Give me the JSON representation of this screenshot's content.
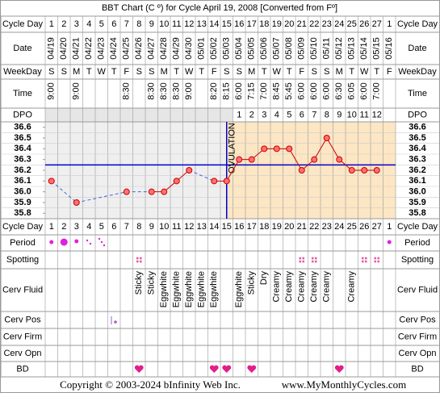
{
  "title": "BBT Chart (C º) for Cycle April 19, 2008  [Converted from Fº]",
  "row_labels": [
    "Cycle Day",
    "Date",
    "WeekDay",
    "Time",
    "DPO",
    "Cycle Day",
    "Period",
    "Spotting",
    "Cerv Fluid",
    "Cerv Pos",
    "Cerv Firm",
    "Cerv Opn",
    "BD"
  ],
  "cycle_days": [
    1,
    2,
    3,
    4,
    5,
    6,
    7,
    8,
    9,
    10,
    11,
    12,
    13,
    14,
    15,
    16,
    17,
    18,
    19,
    20,
    21,
    22,
    23,
    24,
    25,
    26,
    27,
    1
  ],
  "weekdays": [
    "S",
    "S",
    "M",
    "T",
    "W",
    "T",
    "F",
    "S",
    "S",
    "M",
    "T",
    "W",
    "T",
    "F",
    "S",
    "S",
    "M",
    "T",
    "W",
    "T",
    "F",
    "S",
    "S",
    "M",
    "T",
    "W",
    "T",
    "F"
  ],
  "times": [
    "9:00",
    null,
    "9:00",
    null,
    null,
    null,
    "8:30",
    null,
    "8:30",
    "8:30",
    "8:30",
    "9:00",
    null,
    "8:20",
    "8:15",
    "6:00",
    "7:15",
    "7:00",
    "8:45",
    "5:45",
    "6:00",
    "6:00",
    "6:00",
    "6:30",
    "6:05",
    "6:00",
    "7:00",
    null
  ],
  "dpo": [
    null,
    null,
    null,
    null,
    null,
    null,
    null,
    null,
    null,
    null,
    null,
    null,
    null,
    null,
    null,
    1,
    2,
    3,
    4,
    5,
    6,
    7,
    8,
    9,
    10,
    11,
    12,
    null
  ],
  "cerv_fluid": [
    null,
    null,
    null,
    null,
    null,
    null,
    null,
    "Sticky",
    "Sticky",
    "Eggwhite",
    "Eggwhite",
    "Eggwhite",
    "Eggwhite",
    "Eggwhite",
    null,
    "Eggwhite",
    "Sticky",
    "Dry",
    "Creamy",
    "Creamy",
    "Creamy",
    "Creamy",
    "Creamy",
    null,
    "Creamy",
    null,
    null,
    null
  ],
  "chart_data": {
    "type": "line",
    "categories": [
      "04/19",
      "04/20",
      "04/21",
      "04/22",
      "04/23",
      "04/24",
      "04/25",
      "04/26",
      "04/27",
      "04/28",
      "04/29",
      "04/30",
      "05/01",
      "05/02",
      "05/03",
      "05/04",
      "05/05",
      "05/06",
      "05/07",
      "05/08",
      "05/09",
      "05/10",
      "05/11",
      "05/12",
      "05/13",
      "05/14",
      "05/15",
      "05/16"
    ],
    "series": [
      {
        "color": "#cc0000",
        "values": [
          36.1,
          null,
          35.9,
          null,
          null,
          null,
          36.0,
          null,
          36.0,
          36.0,
          36.1,
          36.2,
          null,
          36.1,
          36.1,
          36.3,
          36.3,
          36.4,
          36.4,
          36.4,
          36.2,
          36.3,
          36.5,
          36.3,
          36.2,
          36.2,
          36.2,
          null
        ]
      }
    ],
    "ylim": [
      35.75,
      36.65
    ],
    "yticks": [
      36.6,
      36.5,
      36.4,
      36.3,
      36.2,
      36.1,
      {
        "value": 36,
        "label": "36.0"
      },
      35.9,
      35.8
    ],
    "coverline": 36.25,
    "coverline_color": "#0000cc",
    "ovulation_date": "05/03",
    "ovulation_label": "OVULATION"
  },
  "footer": {
    "copyright": "Copyright © 2003-2024 bInfinity Web Inc.",
    "site": "www.MyMonthlyCycles.com"
  }
}
